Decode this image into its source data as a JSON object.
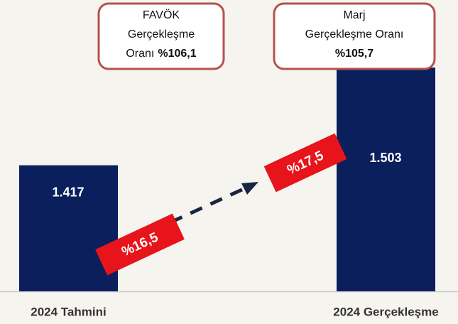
{
  "chart_data": {
    "type": "bar",
    "categories": [
      "2024 Tahmini",
      "2024 Gerçekleşme"
    ],
    "values": [
      1417,
      1503
    ],
    "value_labels": [
      "1.417",
      "1.503"
    ],
    "color": "#0b1f5c",
    "ylim": [
      1306,
      1550
    ],
    "callouts": [
      {
        "lines": [
          [
            {
              "text": "FAVÖK"
            }
          ],
          [
            {
              "text": "Gerçekleşme"
            }
          ],
          [
            {
              "text": "Oranı"
            },
            {
              "text": "%106,1",
              "bold": true
            }
          ]
        ]
      },
      {
        "lines": [
          [
            {
              "text": "Marj"
            }
          ],
          [
            {
              "text": "Gerçekleşme Oranı"
            }
          ],
          [
            {
              "text": "%105,7",
              "bold": true
            }
          ]
        ]
      }
    ],
    "tags": [
      "%16,5",
      "%17,5"
    ]
  }
}
